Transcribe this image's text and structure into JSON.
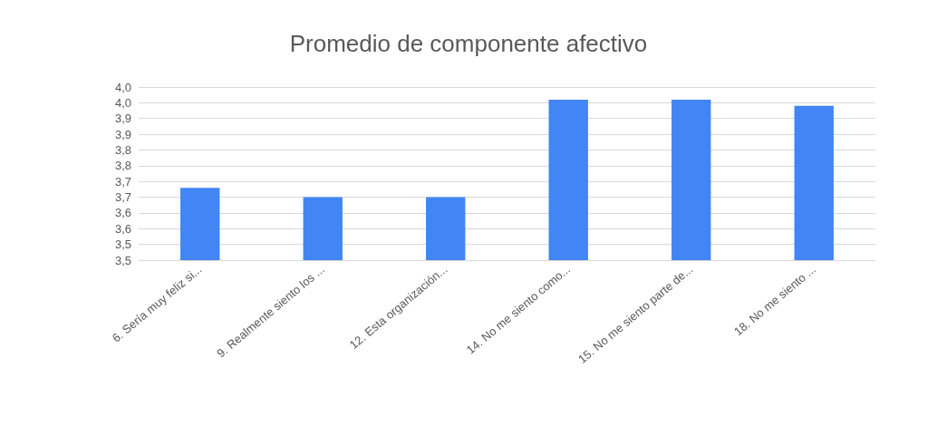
{
  "chart_data": {
    "type": "bar",
    "title": "Promedio de componente afectivo",
    "categories": [
      "6. Sería muy feliz si...",
      "9. Realmente siento los ...",
      "12. Esta organización...",
      "14. No me siento como...",
      "15. No me siento parte de...",
      "18. No me siento ..."
    ],
    "values": [
      3.73,
      3.7,
      3.7,
      4.01,
      4.01,
      3.99
    ],
    "color": "#4285f4",
    "ylim": [
      3.5,
      4.05
    ],
    "yticks": [
      {
        "value": 3.5,
        "label": "3,5"
      },
      {
        "value": 3.55,
        "label": "3,5"
      },
      {
        "value": 3.6,
        "label": "3,6"
      },
      {
        "value": 3.65,
        "label": "3,6"
      },
      {
        "value": 3.7,
        "label": "3,7"
      },
      {
        "value": 3.75,
        "label": "3,7"
      },
      {
        "value": 3.8,
        "label": "3,8"
      },
      {
        "value": 3.85,
        "label": "3,8"
      },
      {
        "value": 3.9,
        "label": "3,9"
      },
      {
        "value": 3.95,
        "label": "3,9"
      },
      {
        "value": 4.0,
        "label": "4,0"
      },
      {
        "value": 4.05,
        "label": "4,0"
      }
    ],
    "grid": true
  }
}
